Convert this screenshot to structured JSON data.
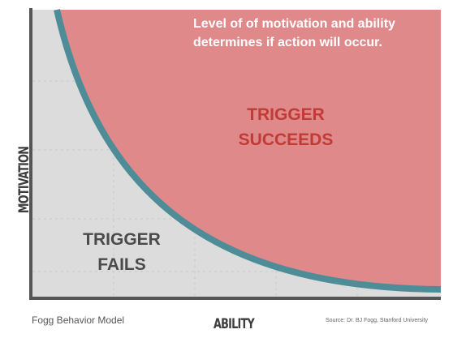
{
  "diagram": {
    "caption": [
      "Level of of motivation and ability",
      "determines if action will occur."
    ],
    "success_label": [
      "TRIGGER",
      "SUCCEEDS"
    ],
    "fail_label": [
      "TRIGGER",
      "FAILS"
    ],
    "y_axis_label": "MOTIVATION",
    "x_axis_label": "ABILITY",
    "footer_left": "Fogg Behavior Model",
    "footer_right": "Source: Dr. BJ Fogg, Stanford University",
    "colors": {
      "success_fill": "#e0898b",
      "fail_fill": "#dcdcdc",
      "curve": "#4e8c98",
      "axis": "#555555",
      "success_text": "#c03b33",
      "fail_text": "#4a4a4a"
    }
  }
}
